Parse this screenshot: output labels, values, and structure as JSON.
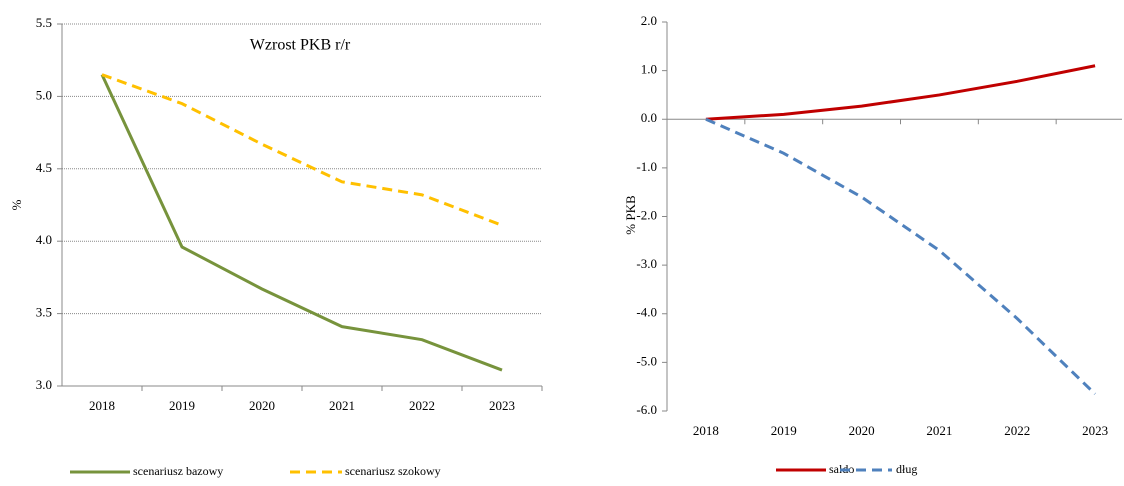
{
  "chart_data": [
    {
      "type": "line",
      "title": "Wzrost PKB r/r",
      "ylabel": "%",
      "categories": [
        "2018",
        "2019",
        "2020",
        "2021",
        "2022",
        "2023"
      ],
      "series": [
        {
          "name": "scenariusz bazowy",
          "color": "#77933c",
          "dash": false,
          "values": [
            5.15,
            3.96,
            3.67,
            3.41,
            3.32,
            3.11
          ]
        },
        {
          "name": "scenariusz szokowy",
          "color": "#ffc000",
          "dash": true,
          "values": [
            5.15,
            4.95,
            4.67,
            4.41,
            4.32,
            4.11
          ]
        }
      ],
      "ylim": [
        3,
        5.5
      ],
      "yticks": [
        {
          "value": 3,
          "label": "3.0"
        },
        3.5,
        {
          "value": 4,
          "label": "4.0"
        },
        4.5,
        {
          "value": 5,
          "label": "5.0"
        },
        5.5
      ],
      "grid": true
    },
    {
      "type": "line",
      "ylabel": "% PKB",
      "categories": [
        "2018",
        "2019",
        "2020",
        "2021",
        "2022",
        "2023"
      ],
      "series": [
        {
          "name": "saldo",
          "color": "#c00000",
          "dash": false,
          "values": [
            0,
            0.1,
            0.27,
            0.5,
            0.78,
            1.1
          ]
        },
        {
          "name": "dług",
          "color": "#4f81bd",
          "dash": true,
          "values": [
            0,
            -0.7,
            -1.6,
            -2.7,
            -4.1,
            -5.65
          ]
        }
      ],
      "ylim": [
        -6,
        2
      ],
      "yticks": [
        {
          "value": -6,
          "label": "-6.0"
        },
        {
          "value": -5,
          "label": "-5.0"
        },
        {
          "value": -4,
          "label": "-4.0"
        },
        {
          "value": -3,
          "label": "-3.0"
        },
        {
          "value": -2,
          "label": "-2.0"
        },
        {
          "value": -1,
          "label": "-1.0"
        },
        {
          "value": 0,
          "label": "0.0"
        },
        {
          "value": 1,
          "label": "1.0"
        },
        {
          "value": 2,
          "label": "2.0"
        }
      ],
      "grid": false
    }
  ]
}
